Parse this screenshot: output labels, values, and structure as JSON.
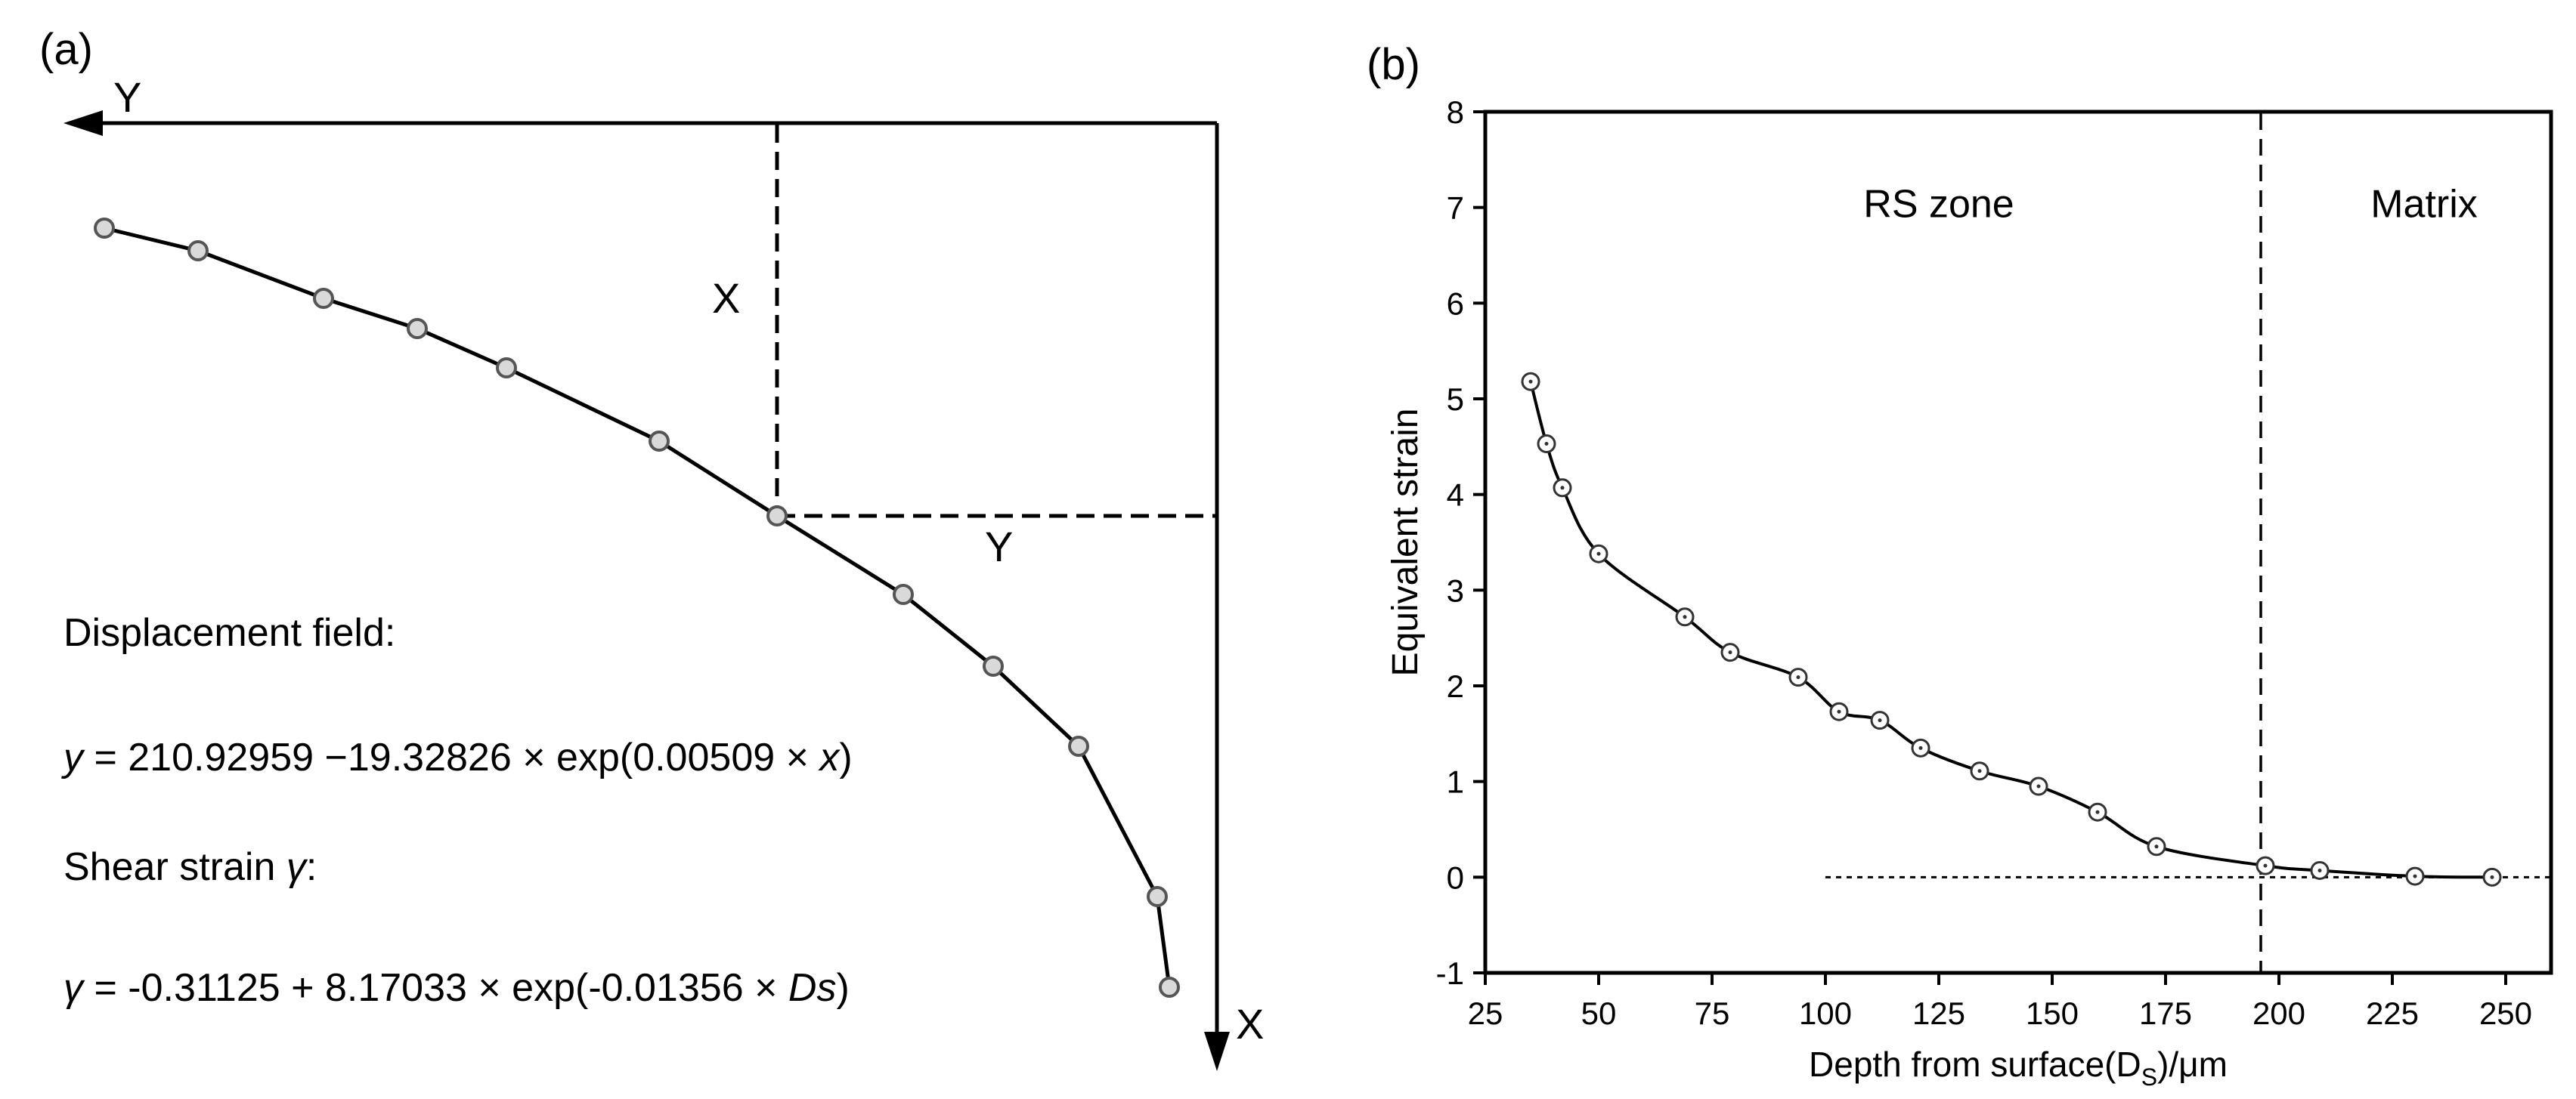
{
  "panel_a": {
    "label": "(a)",
    "axis_y_label": "Y",
    "axis_x_label": "X",
    "guide_x_label": "X",
    "guide_y_label": "Y",
    "displacement_title": "Displacement field:",
    "displacement_eq": {
      "var": "y",
      "body": " = 210.92959 −19.32826 × exp(0.00509 × ",
      "x_var": "x",
      "close": ")"
    },
    "shear_title": {
      "text": "Shear strain ",
      "var": "γ",
      "colon": ":"
    },
    "shear_eq": {
      "var": "γ",
      "body": " = -0.31125 + 8.17033 × exp(-0.01356 × ",
      "ds_var": "Ds",
      "close": ")"
    },
    "colors": {
      "line": "#000000",
      "marker_fill": "#d9d9d9",
      "marker_edge": "#555555"
    }
  },
  "chart_data": [
    {
      "panel": "a",
      "type": "line",
      "title": "",
      "description_series": "displacement profile",
      "axes": {
        "x_label": "X",
        "y_label": "Y"
      },
      "grid": false
    },
    {
      "panel": "b",
      "type": "line",
      "label": "(b)",
      "title": "",
      "xlabel": "Depth from surface(D",
      "xlabel_sub": "S",
      "xlabel_unit": ")/μm",
      "ylabel": "Equivalent strain",
      "xlim": [
        25,
        260
      ],
      "ylim": [
        -1,
        8
      ],
      "xticks": [
        25,
        50,
        75,
        100,
        125,
        150,
        175,
        200,
        225,
        250
      ],
      "yticks": [
        -1,
        0,
        1,
        2,
        3,
        4,
        5,
        6,
        7,
        8
      ],
      "grid": false,
      "series": [
        {
          "name": "Equivalent strain",
          "x": [
            35,
            38.5,
            42,
            50,
            69,
            79,
            94,
            103,
            112,
            121,
            134,
            147,
            160,
            173,
            197,
            209,
            230,
            247
          ],
          "y": [
            5.18,
            4.53,
            4.07,
            3.38,
            2.72,
            2.35,
            2.09,
            1.73,
            1.64,
            1.35,
            1.11,
            0.95,
            0.68,
            0.32,
            0.12,
            0.07,
            0.01,
            0.0
          ]
        }
      ],
      "reference_hline": {
        "y": 0,
        "x_from": 100,
        "x_to": 260,
        "style": "dotted"
      },
      "boundary_vline": {
        "x": 196,
        "style": "dashed"
      },
      "annotations": [
        {
          "text": "RS zone",
          "x": 125,
          "y": 6.9
        },
        {
          "text": "Matrix",
          "x": 232,
          "y": 6.9
        }
      ]
    }
  ]
}
